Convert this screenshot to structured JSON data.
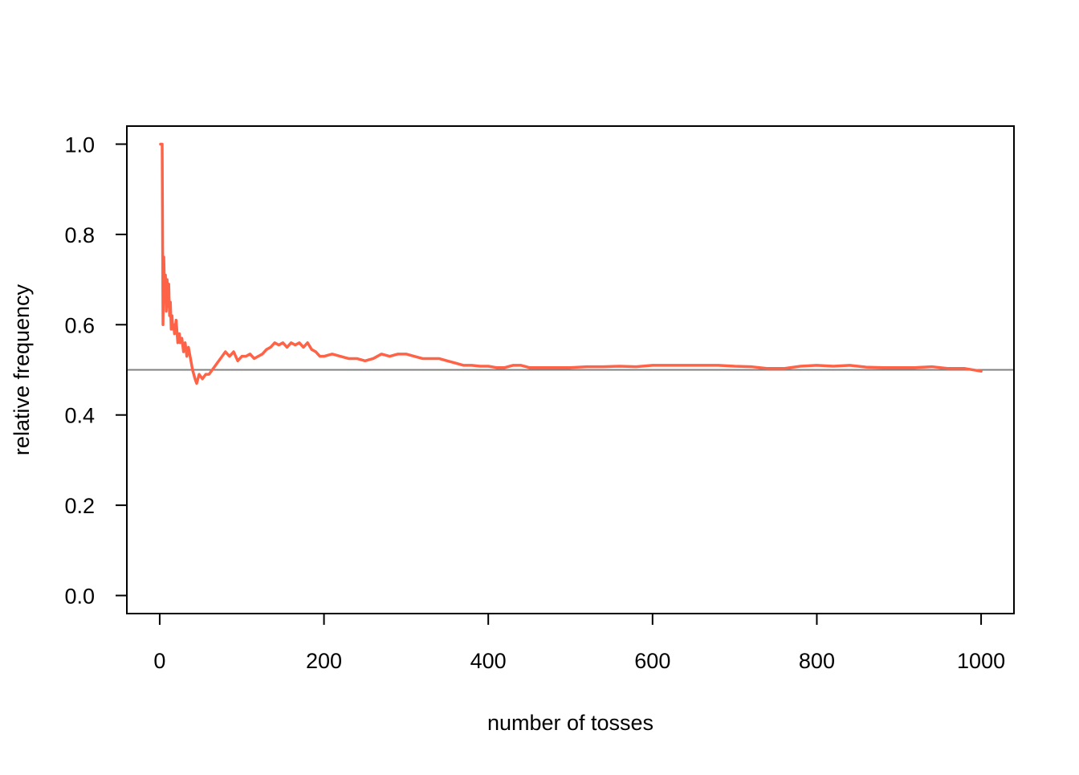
{
  "chart_data": {
    "type": "line",
    "title": "",
    "xlabel": "number of tosses",
    "ylabel": "relative frequency",
    "xlim": [
      -40,
      1040
    ],
    "ylim": [
      -0.04,
      1.04
    ],
    "x_ticks": [
      0,
      200,
      400,
      600,
      800,
      1000
    ],
    "x_tick_labels": [
      "0",
      "200",
      "400",
      "600",
      "800",
      "1000"
    ],
    "y_ticks": [
      0.0,
      0.2,
      0.4,
      0.6,
      0.8,
      1.0
    ],
    "y_tick_labels": [
      "0.0",
      "0.2",
      "0.4",
      "0.6",
      "0.8",
      "1.0"
    ],
    "grid": false,
    "legend": "none",
    "reference_line": {
      "y": 0.5,
      "color": "#808080"
    },
    "series": [
      {
        "color": "#ff6347",
        "x": [
          1,
          3,
          4,
          5,
          6,
          7,
          8,
          9,
          10,
          11,
          12,
          13,
          14,
          15,
          16,
          17,
          18,
          20,
          22,
          24,
          25,
          27,
          29,
          31,
          33,
          35,
          37,
          40,
          43,
          45,
          48,
          52,
          56,
          60,
          64,
          68,
          72,
          76,
          80,
          85,
          90,
          95,
          100,
          105,
          110,
          115,
          120,
          125,
          130,
          135,
          140,
          145,
          150,
          155,
          160,
          165,
          170,
          175,
          180,
          185,
          190,
          195,
          200,
          210,
          220,
          230,
          240,
          250,
          260,
          270,
          280,
          290,
          300,
          310,
          320,
          330,
          340,
          350,
          360,
          370,
          380,
          390,
          400,
          410,
          420,
          430,
          440,
          450,
          460,
          470,
          480,
          500,
          520,
          540,
          560,
          580,
          600,
          620,
          640,
          660,
          680,
          700,
          720,
          740,
          760,
          780,
          800,
          820,
          840,
          860,
          880,
          900,
          920,
          940,
          960,
          980,
          1000
        ],
        "y": [
          1.0,
          1.0,
          0.6,
          0.75,
          0.67,
          0.71,
          0.63,
          0.7,
          0.64,
          0.69,
          0.62,
          0.65,
          0.59,
          0.62,
          0.59,
          0.6,
          0.58,
          0.61,
          0.56,
          0.58,
          0.56,
          0.57,
          0.54,
          0.56,
          0.53,
          0.55,
          0.53,
          0.5,
          0.48,
          0.47,
          0.49,
          0.48,
          0.49,
          0.49,
          0.5,
          0.51,
          0.52,
          0.53,
          0.54,
          0.53,
          0.54,
          0.52,
          0.53,
          0.53,
          0.535,
          0.525,
          0.53,
          0.535,
          0.545,
          0.55,
          0.56,
          0.555,
          0.56,
          0.55,
          0.56,
          0.555,
          0.56,
          0.55,
          0.56,
          0.545,
          0.54,
          0.53,
          0.53,
          0.535,
          0.53,
          0.525,
          0.525,
          0.52,
          0.525,
          0.535,
          0.53,
          0.535,
          0.535,
          0.53,
          0.525,
          0.525,
          0.525,
          0.52,
          0.515,
          0.51,
          0.51,
          0.508,
          0.508,
          0.505,
          0.505,
          0.51,
          0.51,
          0.505,
          0.505,
          0.505,
          0.505,
          0.505,
          0.507,
          0.507,
          0.508,
          0.507,
          0.51,
          0.51,
          0.51,
          0.51,
          0.51,
          0.508,
          0.507,
          0.503,
          0.503,
          0.508,
          0.51,
          0.508,
          0.51,
          0.506,
          0.505,
          0.505,
          0.505,
          0.507,
          0.503,
          0.503,
          0.497
        ]
      }
    ]
  }
}
